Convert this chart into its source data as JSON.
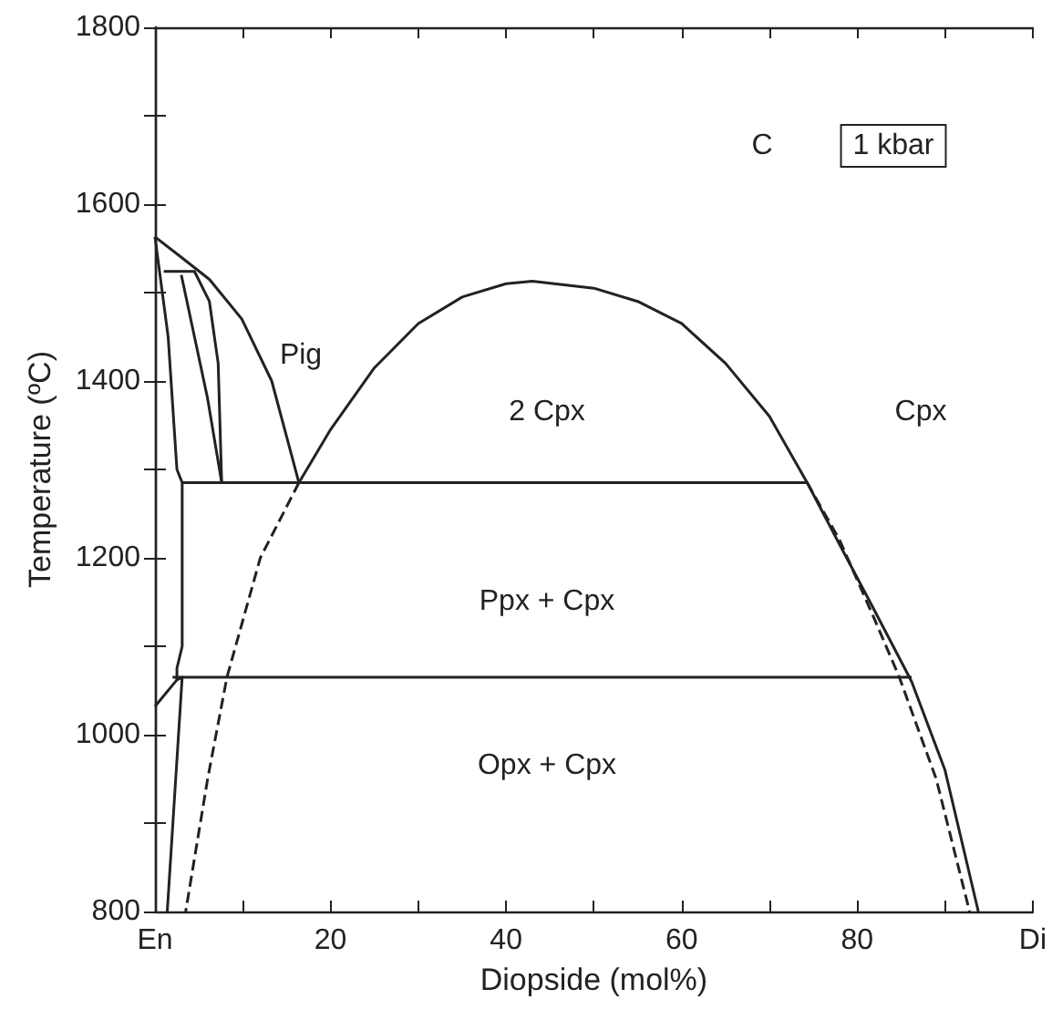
{
  "chart_data": {
    "type": "line",
    "xlabel": "Diopside (mol%)",
    "ylabel": "Temperature (ºC)",
    "xlim": [
      0,
      100
    ],
    "ylim": [
      800,
      1800
    ],
    "xticks": [
      {
        "value": 0,
        "label": "En"
      },
      {
        "value": 10,
        "label": null
      },
      20,
      {
        "value": 30,
        "label": null
      },
      40,
      {
        "value": 50,
        "label": null
      },
      60,
      {
        "value": 70,
        "label": null
      },
      80,
      {
        "value": 90,
        "label": null
      },
      {
        "value": 100,
        "label": "Di"
      }
    ],
    "yticks": [
      800,
      {
        "value": 900,
        "label": null
      },
      1000,
      {
        "value": 1100,
        "label": null
      },
      1200,
      {
        "value": 1300,
        "label": null
      },
      1400,
      {
        "value": 1500,
        "label": null
      },
      1600,
      {
        "value": 1700,
        "label": null
      },
      1800
    ],
    "grid": false,
    "marker": "none",
    "series": [
      {
        "color": "#222222",
        "line_style": "solid",
        "x": [
          16.4,
          20,
          25,
          30,
          35,
          40,
          43,
          50,
          55,
          60,
          65,
          70,
          74.3,
          78,
          82,
          86.2,
          90,
          93.8
        ],
        "values": [
          1285,
          1345,
          1415,
          1465,
          1495,
          1510,
          1513,
          1505,
          1490,
          1465,
          1420,
          1360,
          1285,
          1215,
          1140,
          1060,
          960,
          800
        ]
      },
      {
        "color": "#222222",
        "line_style": "dashed",
        "x": [
          16.4,
          12,
          8.2,
          6,
          3.5
        ],
        "values": [
          1285,
          1200,
          1065,
          950,
          800
        ]
      },
      {
        "color": "#222222",
        "line_style": "dashed",
        "x": [
          74.3,
          78,
          82,
          84.8,
          89,
          92.8
        ],
        "values": [
          1285,
          1220,
          1130,
          1065,
          950,
          800
        ]
      },
      {
        "color": "#222222",
        "line_style": "solid",
        "x": [
          3.1,
          74.3
        ],
        "values": [
          1285,
          1285
        ]
      },
      {
        "color": "#222222",
        "line_style": "solid",
        "x": [
          2,
          86.2
        ],
        "values": [
          1065,
          1065
        ]
      },
      {
        "color": "#222222",
        "line_style": "solid",
        "x": [
          0,
          3,
          6.2,
          9.9,
          13.3,
          16.4
        ],
        "values": [
          1563,
          1540,
          1515,
          1470,
          1400,
          1285
        ]
      },
      {
        "color": "#222222",
        "line_style": "solid",
        "x": [
          1,
          4.5,
          6.2,
          7.2,
          7.6
        ],
        "values": [
          1524,
          1524,
          1490,
          1420,
          1285
        ]
      },
      {
        "color": "#222222",
        "line_style": "solid",
        "x": [
          3,
          4.5,
          6,
          7.6
        ],
        "values": [
          1520,
          1450,
          1380,
          1285
        ]
      },
      {
        "color": "#222222",
        "line_style": "solid",
        "x": [
          0,
          1.5,
          2.5,
          3.1,
          3.1,
          2.5,
          2.5,
          3.1,
          1.4
        ],
        "values": [
          1563,
          1450,
          1300,
          1285,
          1100,
          1075,
          1062,
          1065,
          800
        ]
      },
      {
        "color": "#222222",
        "line_style": "solid",
        "x": [
          0,
          2.5
        ],
        "values": [
          1032,
          1062
        ]
      }
    ],
    "annotations": [
      "Pig",
      "2 Cpx",
      "Cpx",
      "Ppx + Cpx",
      "Opx + Cpx",
      "C",
      "1 kbar"
    ]
  }
}
